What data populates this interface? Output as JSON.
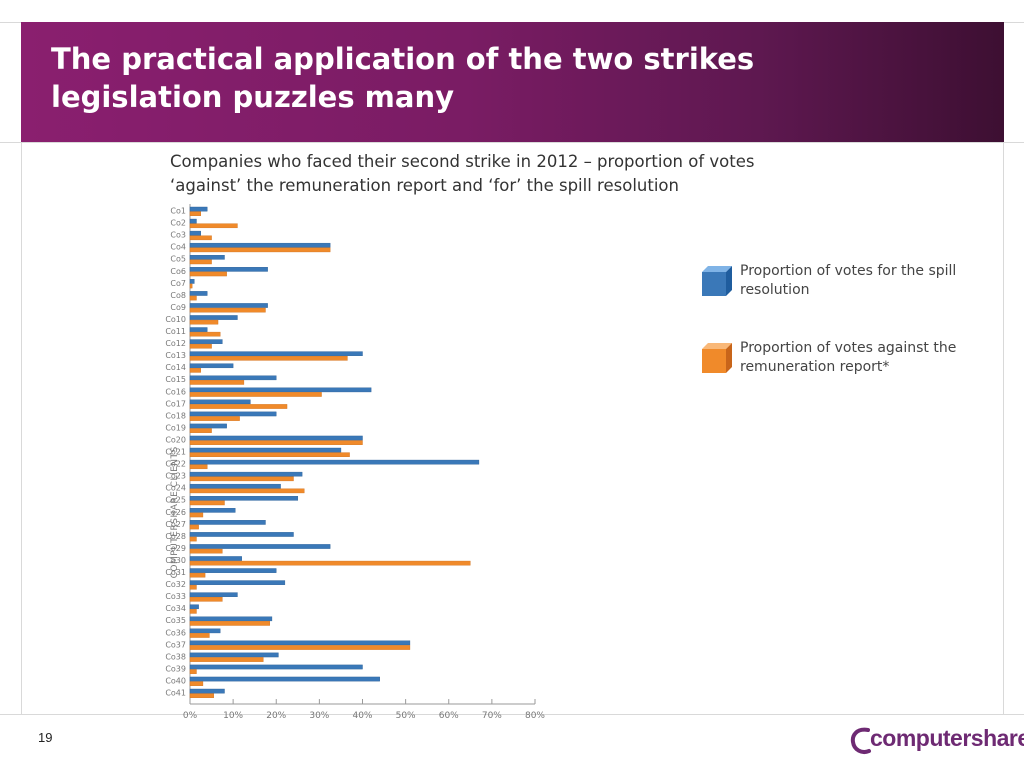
{
  "slide": {
    "title": "The practical application of the two strikes legislation puzzles many",
    "page_number": "19",
    "brand": "computershare"
  },
  "colors": {
    "banner": "#7a1c64",
    "series_spill": "#3a78b8",
    "series_against": "#f08a2a",
    "brand": "#6e2a73"
  },
  "chart_data": {
    "type": "bar",
    "orientation": "horizontal",
    "title": "Companies who faced their second strike in 2012 – proportion of votes ‘against’ the remuneration report and ‘for’ the spill resolution",
    "ylabel": "COMPUTERSHARE CLIENTS",
    "xlabel": "",
    "xlim": [
      0,
      80
    ],
    "x_ticks": [
      "0%",
      "10%",
      "20%",
      "30%",
      "40%",
      "50%",
      "60%",
      "70%",
      "80%"
    ],
    "grid": false,
    "legend_position": "right",
    "categories": [
      "Co1",
      "Co2",
      "Co3",
      "Co4",
      "Co5",
      "Co6",
      "Co7",
      "Co8",
      "Co9",
      "Co10",
      "Co11",
      "Co12",
      "Co13",
      "Co14",
      "Co15",
      "Co16",
      "Co17",
      "Co18",
      "Co19",
      "Co20",
      "Co21",
      "Co22",
      "Co23",
      "Co24",
      "Co25",
      "Co26",
      "Co27",
      "Co28",
      "Co29",
      "Co30",
      "Co31",
      "Co32",
      "Co33",
      "Co34",
      "Co35",
      "Co36",
      "Co37",
      "Co38",
      "Co39",
      "Co40",
      "Co41"
    ],
    "series": [
      {
        "name": "Proportion of votes for the spill resolution",
        "values": [
          4,
          1.5,
          2.5,
          32.5,
          8,
          18,
          1,
          4,
          18,
          11,
          4,
          7.5,
          40,
          10,
          20,
          42,
          14,
          20,
          8.5,
          40,
          35,
          67,
          26,
          21,
          25,
          10.5,
          17.5,
          24,
          32.5,
          12,
          20,
          22,
          11,
          2,
          19,
          7,
          51,
          20.5,
          40,
          44,
          8
        ]
      },
      {
        "name": "Proportion of votes against the remuneration report*",
        "values": [
          2.5,
          11,
          5,
          32.5,
          5,
          8.5,
          0.5,
          1.5,
          17.5,
          6.5,
          7,
          5,
          36.5,
          2.5,
          12.5,
          30.5,
          22.5,
          11.5,
          5,
          40,
          37,
          4,
          24,
          26.5,
          8,
          3,
          2,
          1.5,
          7.5,
          65,
          3.5,
          1.5,
          7.5,
          1.5,
          18.5,
          4.5,
          51,
          17,
          1.5,
          3,
          5.5
        ]
      }
    ]
  }
}
